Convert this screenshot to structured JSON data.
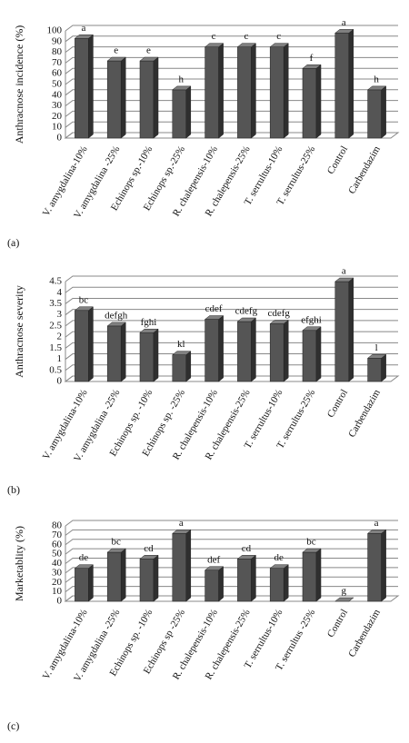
{
  "chart_data": [
    {
      "type": "bar",
      "panel_label": "(a)",
      "y_label": "Anthracnose incidence (%)",
      "categories": [
        "V. amygdalina-10%",
        "V. amygdalina -25%",
        "Echinops sp.-10%",
        "Echinops sp.-25%",
        "R. chalepensis-10%",
        "R. chalepensis-25%",
        "T. serrultus-10%",
        "T. serrultus-25%",
        "Control",
        "Carbendazim"
      ],
      "values": [
        93,
        72,
        72,
        45,
        85,
        85,
        85,
        65,
        98,
        45
      ],
      "annotations": [
        "a",
        "e",
        "e",
        "h",
        "c",
        "c",
        "c",
        "f",
        "a",
        "h"
      ],
      "color": "#555555",
      "ylim": [
        0,
        100
      ],
      "yticks": [
        0,
        10,
        20,
        30,
        40,
        50,
        60,
        70,
        80,
        90,
        100
      ],
      "grid": true
    },
    {
      "type": "bar",
      "panel_label": "(b)",
      "y_label": "Anthracnose severity",
      "categories": [
        "V. amygdalina-10%",
        "V. amygdalina -25%",
        "Echinops sp. -10%",
        "Echinops sp. -25%",
        "R. chalepensis-10%",
        "R. chalepensis-25%",
        "T. serrultus-10%",
        "T. serrultus-25%",
        "Control",
        "Carbendazim"
      ],
      "values": [
        3.2,
        2.5,
        2.2,
        1.2,
        2.8,
        2.7,
        2.6,
        2.3,
        4.5,
        1.05
      ],
      "annotations": [
        "bc",
        "defgh",
        "fghi",
        "kl",
        "cdef",
        "cdefg",
        "cdefg",
        "efghi",
        "a",
        "l"
      ],
      "color": "#555555",
      "ylim": [
        0,
        4.5
      ],
      "yticks": [
        0,
        0.5,
        1,
        1.5,
        2,
        2.5,
        3,
        3.5,
        4,
        4.5
      ],
      "grid": true
    },
    {
      "type": "bar",
      "panel_label": "(c)",
      "y_label": "Marketablity (%)",
      "categories": [
        "V. amygdalina-10%",
        "V. amygdalina -25%",
        "Echinops sp. -10%",
        "Echinops sp -25%",
        "R. chalepensis-10%",
        "R. chalepensis-25%",
        "T. serrultus-10%",
        "T. serrultus -25%",
        "Control",
        "Carbendazim"
      ],
      "values": [
        35,
        52,
        45,
        72,
        33,
        45,
        35,
        52,
        0,
        72
      ],
      "annotations": [
        "de",
        "bc",
        "cd",
        "a",
        "def",
        "cd",
        "de",
        "bc",
        "g",
        "a"
      ],
      "color": "#555555",
      "ylim": [
        0,
        80
      ],
      "yticks": [
        0,
        10,
        20,
        30,
        40,
        50,
        60,
        70,
        80
      ],
      "grid": true
    }
  ]
}
